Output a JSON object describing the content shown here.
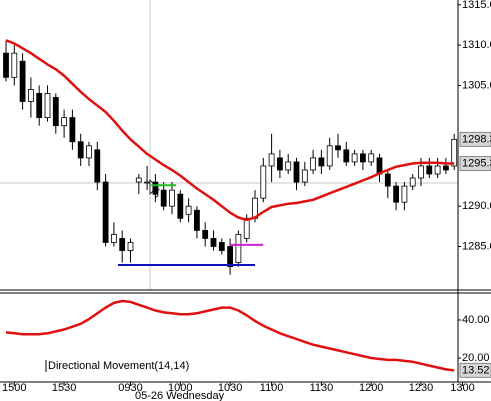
{
  "chart_data": [
    {
      "type": "candlestick",
      "open": [
        1309,
        1306,
        1308,
        1303,
        1304,
        1301,
        1303.5,
        1300,
        1301,
        1298,
        1296,
        1297,
        1293,
        1285.5,
        1286,
        1284.5,
        1293,
        1293,
        1293,
        1292,
        1290,
        1291.5,
        1289,
        1289.5,
        1287,
        1286,
        1285.5,
        1285,
        1283,
        1286,
        1288.5,
        1291,
        1295,
        1296,
        1294.5,
        1295.5,
        1293,
        1294.5,
        1296,
        1295,
        1297.5,
        1297,
        1295.5,
        1296.5,
        1295.5,
        1296,
        1294,
        1292.5,
        1290.5,
        1292.5,
        1293.5,
        1295,
        1294,
        1295,
        1295
      ],
      "high": [
        1310.5,
        1310,
        1309,
        1306,
        1305,
        1305,
        1304,
        1302,
        1302,
        1299,
        1298,
        1298,
        1294,
        1288,
        1287,
        1286,
        1294,
        1295,
        1294,
        1293,
        1293,
        1292,
        1291,
        1290,
        1288,
        1287,
        1286,
        1286,
        1287,
        1289,
        1292,
        1296,
        1299,
        1297,
        1296.5,
        1296,
        1295.5,
        1297,
        1297,
        1298.5,
        1299,
        1298,
        1297,
        1297,
        1297,
        1296.5,
        1294.5,
        1293,
        1293,
        1294,
        1296,
        1296,
        1296,
        1296,
        1299
      ],
      "low": [
        1305.5,
        1305,
        1302,
        1301,
        1300,
        1300.5,
        1299,
        1298.5,
        1297,
        1295,
        1295,
        1292,
        1285,
        1285,
        1283,
        1283,
        1291.5,
        1292,
        1290.5,
        1289.5,
        1289,
        1288,
        1288,
        1286,
        1285,
        1284.5,
        1284,
        1281.5,
        1282.5,
        1285.5,
        1288,
        1290.5,
        1293,
        1293.5,
        1294,
        1292,
        1292.5,
        1294,
        1294,
        1294.5,
        1296,
        1295,
        1295,
        1294.5,
        1295,
        1293,
        1291,
        1289.5,
        1289.5,
        1292,
        1292.5,
        1293.5,
        1293.5,
        1294,
        1294.5
      ],
      "close": [
        1306,
        1309,
        1303,
        1304.5,
        1301,
        1304,
        1300,
        1301,
        1298,
        1296,
        1297.5,
        1293,
        1285.5,
        1286.5,
        1284.5,
        1285.5,
        1293.5,
        1293,
        1291.5,
        1290,
        1292,
        1288.5,
        1290,
        1287,
        1286,
        1285,
        1284.5,
        1282.5,
        1286.5,
        1288.5,
        1291,
        1295,
        1296.5,
        1294.5,
        1295.5,
        1293,
        1294.5,
        1296,
        1295,
        1297.5,
        1297,
        1295.5,
        1296.5,
        1295.5,
        1296.5,
        1294,
        1292.5,
        1290.5,
        1292.5,
        1293.5,
        1295,
        1294,
        1295,
        1294.5,
        1298.3
      ],
      "up_color": "#ffffff",
      "down_color": "#000000",
      "series": [
        {
          "color": "#e01010",
          "values": [
            1310.6,
            1310.2,
            1309.6,
            1309.0,
            1308.3,
            1307.6,
            1307.0,
            1306.2,
            1305.2,
            1304.2,
            1303.3,
            1302.5,
            1301.7,
            1300.6,
            1299.4,
            1298.3,
            1297.4,
            1296.5,
            1295.8,
            1295.1,
            1294.5,
            1293.8,
            1293.0,
            1292.2,
            1291.5,
            1290.8,
            1290.0,
            1289.2,
            1288.6,
            1288.3,
            1288.6,
            1289.3,
            1289.9,
            1290.1,
            1290.3,
            1290.4,
            1290.6,
            1290.8,
            1291.2,
            1291.6,
            1292.0,
            1292.4,
            1292.8,
            1293.2,
            1293.6,
            1294.1,
            1294.5,
            1294.9,
            1295.1,
            1295.3,
            1295.4,
            1295.4,
            1295.4,
            1295.3,
            1295.3
          ]
        }
      ],
      "levels": [
        {
          "value": 1292.6,
          "color": "#22bb22",
          "x": [
            17.5,
            20.5
          ]
        },
        {
          "value": 1285.2,
          "color": "#d020d0",
          "x": [
            27,
            31
          ]
        },
        {
          "value": 1282.7,
          "color": "#1010c0",
          "x": [
            13.5,
            30
          ]
        }
      ],
      "ylim": [
        1279.6,
        1315.6
      ],
      "yticks": [
        {
          "value": 1315,
          "label": "1315.0"
        },
        {
          "value": 1310,
          "label": "1310.0"
        },
        {
          "value": 1305,
          "label": "1305.0"
        },
        {
          "value": 1290,
          "label": "1290.0"
        },
        {
          "value": 1285,
          "label": "1285.0"
        }
      ]
    },
    {
      "type": "line",
      "series": [
        {
          "name": "Directional Movement(14,14)",
          "color": "#e01010",
          "values": [
            33.5,
            33,
            32.5,
            32.5,
            32.5,
            33,
            34,
            35,
            36.5,
            38,
            40.5,
            43.5,
            46.5,
            49,
            50,
            49.5,
            48,
            46.5,
            45,
            44,
            43.5,
            43,
            43,
            43.5,
            44.5,
            45.5,
            46.5,
            46.5,
            45,
            42.5,
            39.5,
            37,
            35,
            33,
            31.5,
            30,
            28.5,
            27,
            26,
            25,
            24,
            23,
            22,
            21,
            20,
            19.5,
            19,
            19,
            18.5,
            18,
            17,
            16,
            15,
            14,
            13.52
          ]
        }
      ],
      "ylim": [
        7.4,
        54.2
      ],
      "yticks": [
        {
          "value": 40,
          "label": "40.00"
        },
        {
          "value": 20,
          "label": "20.00"
        }
      ],
      "xticks": [
        {
          "value": 1,
          "label": "1500"
        },
        {
          "value": 7,
          "label": "1530"
        },
        {
          "value": 15,
          "label": "0930"
        },
        {
          "value": 21,
          "label": "1000"
        },
        {
          "value": 27,
          "label": "1030"
        },
        {
          "value": 32,
          "label": "1100"
        },
        {
          "value": 38,
          "label": "1130"
        },
        {
          "value": 44,
          "label": "1200"
        },
        {
          "value": 50,
          "label": "1230"
        },
        {
          "value": 55,
          "label": "1300"
        }
      ],
      "x_label": "05-26 Wednesday"
    }
  ]
}
